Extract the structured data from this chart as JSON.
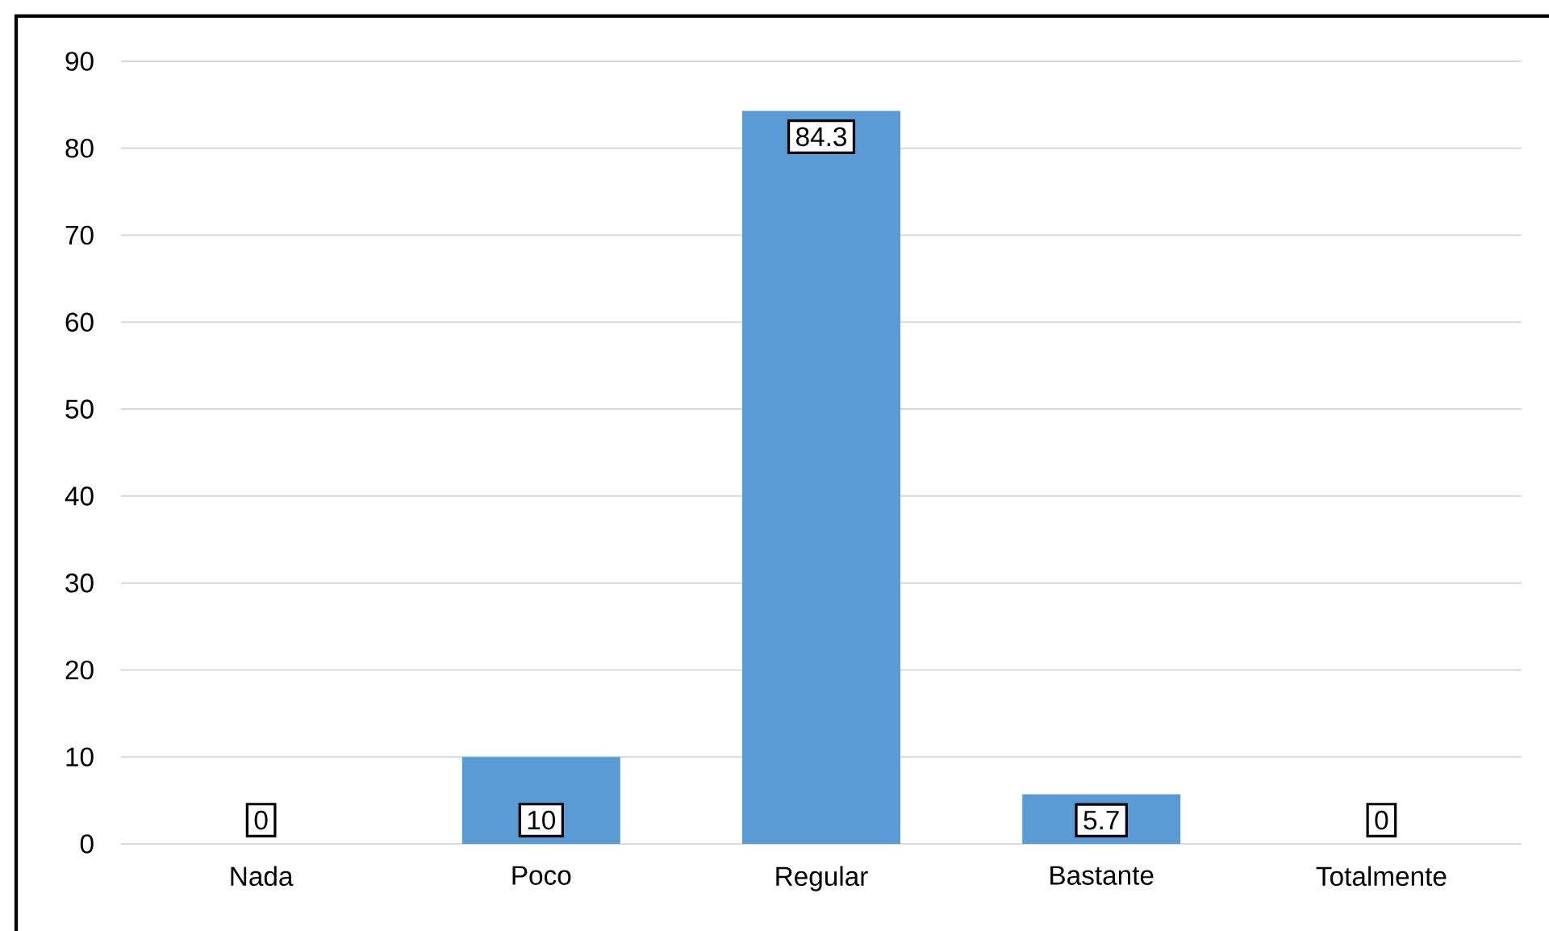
{
  "chart_data": {
    "type": "bar",
    "categories": [
      "Nada",
      "Poco",
      "Regular",
      "Bastante",
      "Totalmente"
    ],
    "values": [
      0,
      10,
      84.3,
      5.7,
      0
    ],
    "color": "#5b9bd5",
    "ylim": [
      0,
      90
    ],
    "yticks": [
      0,
      10,
      20,
      30,
      40,
      50,
      60,
      70,
      80,
      90
    ],
    "grid": "y",
    "data_labels": true
  }
}
